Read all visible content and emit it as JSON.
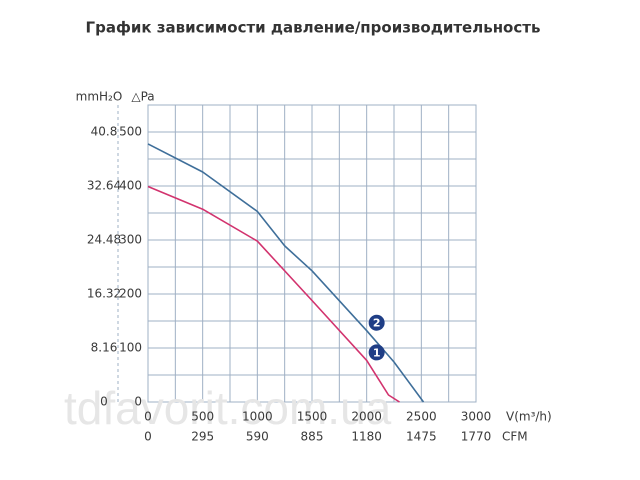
{
  "chart_data": {
    "type": "line",
    "title": "График зависимости давление/производительность",
    "y_label": "△Pa",
    "y2_label": "mmH₂O",
    "x_label": "V(m³/h)",
    "x2_label": "CFM",
    "watermark": "tdfavorit.com.ua",
    "xlim": [
      0,
      3000
    ],
    "xticks": [
      0,
      500,
      1000,
      1500,
      2000,
      2500,
      3000
    ],
    "x2lim": [
      0,
      1770
    ],
    "x2ticks": [
      0,
      295,
      590,
      885,
      1180,
      1475,
      1770
    ],
    "ylim": [
      0,
      550
    ],
    "yticks": [
      0,
      100,
      200,
      300,
      400,
      500
    ],
    "y2lim": [
      0,
      44.88
    ],
    "y2ticks": [
      0,
      8.16,
      16.32,
      24.48,
      32.64,
      40.8
    ],
    "grid": true,
    "series": [
      {
        "name": "1",
        "color": "#d2336e",
        "x": [
          0,
          500,
          1000,
          1500,
          2000,
          2200,
          2300
        ],
        "values": [
          399,
          357,
          298,
          188,
          77,
          13,
          0
        ]
      },
      {
        "name": "2",
        "color": "#3f6f9a",
        "x": [
          0,
          500,
          1000,
          1250,
          1500,
          2000,
          2250,
          2520
        ],
        "values": [
          478,
          426,
          353,
          289,
          243,
          132,
          74,
          0
        ]
      }
    ]
  }
}
